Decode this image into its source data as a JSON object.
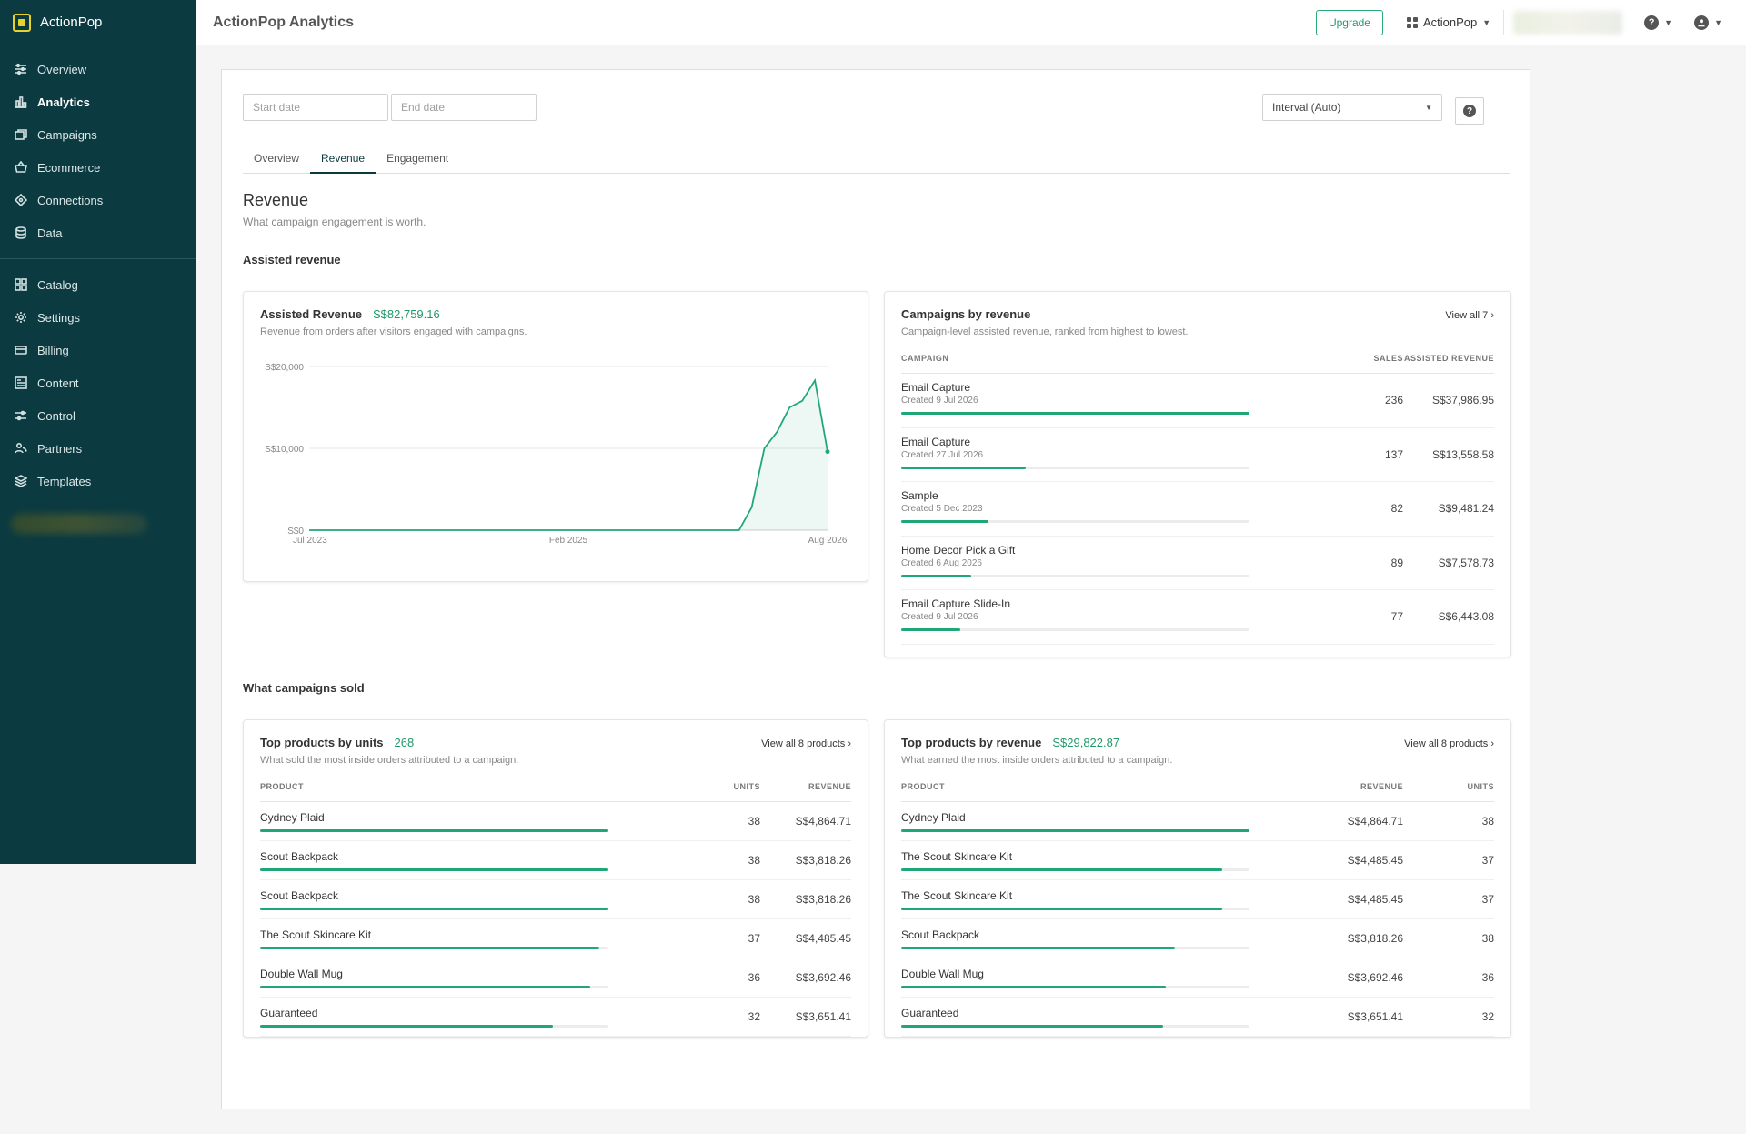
{
  "app": {
    "brand": "ActionPop",
    "title": "ActionPop Analytics"
  },
  "sidebar": {
    "items_top": [
      {
        "label": "Overview",
        "icon": "sliders-icon"
      },
      {
        "label": "Analytics",
        "icon": "bar-chart-icon",
        "active": true
      },
      {
        "label": "Campaigns",
        "icon": "campaigns-icon"
      },
      {
        "label": "Ecommerce",
        "icon": "basket-icon"
      },
      {
        "label": "Connections",
        "icon": "connections-icon"
      },
      {
        "label": "Data",
        "icon": "database-icon"
      }
    ],
    "items_bottom": [
      {
        "label": "Catalog",
        "icon": "grid-icon"
      },
      {
        "label": "Settings",
        "icon": "gear-icon"
      },
      {
        "label": "Billing",
        "icon": "card-icon"
      },
      {
        "label": "Content",
        "icon": "content-icon"
      },
      {
        "label": "Control",
        "icon": "control-icon"
      },
      {
        "label": "Partners",
        "icon": "partners-icon"
      },
      {
        "label": "Templates",
        "icon": "layers-icon"
      }
    ]
  },
  "topbar": {
    "upgrade_label": "Upgrade",
    "account_label": "ActionPop"
  },
  "filters": {
    "start_placeholder": "Start date",
    "end_placeholder": "End date",
    "interval_label": "Interval (Auto)"
  },
  "tabs": [
    "Overview",
    "Revenue",
    "Engagement"
  ],
  "active_tab": "Revenue",
  "page": {
    "title": "Revenue",
    "subtitle": "What campaign engagement is worth.",
    "section_assisted": "Assisted revenue",
    "section_sold": "What campaigns sold"
  },
  "assisted_card": {
    "title": "Assisted Revenue",
    "metric": "S$82,759.16",
    "subtitle": "Revenue from orders after visitors engaged with campaigns."
  },
  "chart_data": {
    "type": "area",
    "title": "",
    "xlabel": "",
    "ylabel": "",
    "ylim": [
      0,
      20000
    ],
    "y_ticks": [
      0,
      10000,
      20000
    ],
    "y_tick_labels": [
      "S$0",
      "S$10,000",
      "S$20,000"
    ],
    "x_tick_labels": [
      "Jul 2023",
      "Feb 2025",
      "Aug 2026"
    ],
    "grid": true,
    "color": "#1fa876",
    "series": [
      {
        "values": [
          0,
          0,
          0,
          0,
          0,
          0,
          0,
          0,
          0,
          0,
          0,
          0,
          0,
          0,
          0,
          0,
          0,
          0,
          0,
          0,
          0,
          0,
          0,
          0,
          0,
          0,
          0,
          0,
          0,
          0,
          0,
          0,
          0,
          0,
          0,
          2800,
          10000,
          12000,
          15000,
          15800,
          18300,
          9600
        ]
      }
    ]
  },
  "campaigns_card": {
    "title": "Campaigns by revenue",
    "link": "View all 7 ›",
    "subtitle": "Campaign-level assisted revenue, ranked from highest to lowest.",
    "columns": [
      "CAMPAIGN",
      "SALES",
      "ASSISTED REVENUE"
    ],
    "rows": [
      {
        "name": "Email Capture",
        "created": "Created 9 Jul 2026",
        "sales": "236",
        "revenue": "S$37,986.95",
        "fraction": 1.0
      },
      {
        "name": "Email Capture",
        "created": "Created 27 Jul 2026",
        "sales": "137",
        "revenue": "S$13,558.58",
        "fraction": 0.357
      },
      {
        "name": "Sample",
        "created": "Created 5 Dec 2023",
        "sales": "82",
        "revenue": "S$9,481.24",
        "fraction": 0.25
      },
      {
        "name": "Home Decor Pick a Gift",
        "created": "Created 6 Aug 2026",
        "sales": "89",
        "revenue": "S$7,578.73",
        "fraction": 0.2
      },
      {
        "name": "Email Capture Slide-In",
        "created": "Created 9 Jul 2026",
        "sales": "77",
        "revenue": "S$6,443.08",
        "fraction": 0.17
      }
    ]
  },
  "units_card": {
    "title": "Top products by units",
    "metric": "268",
    "link": "View all 8 products ›",
    "subtitle": "What sold the most inside orders attributed to a campaign.",
    "columns": [
      "PRODUCT",
      "UNITS",
      "REVENUE"
    ],
    "rows": [
      {
        "name": "Cydney Plaid",
        "units": "38",
        "revenue": "S$4,864.71",
        "fraction": 1.0
      },
      {
        "name": "Scout Backpack",
        "units": "38",
        "revenue": "S$3,818.26",
        "fraction": 1.0
      },
      {
        "name": "Scout Backpack",
        "units": "38",
        "revenue": "S$3,818.26",
        "fraction": 1.0
      },
      {
        "name": "The Scout Skincare Kit",
        "units": "37",
        "revenue": "S$4,485.45",
        "fraction": 0.974
      },
      {
        "name": "Double Wall Mug",
        "units": "36",
        "revenue": "S$3,692.46",
        "fraction": 0.947
      },
      {
        "name": "Guaranteed",
        "units": "32",
        "revenue": "S$3,651.41",
        "fraction": 0.842
      }
    ]
  },
  "revenue_card": {
    "title": "Top products by revenue",
    "metric": "S$29,822.87",
    "link": "View all 8 products ›",
    "subtitle": "What earned the most inside orders attributed to a campaign.",
    "columns": [
      "PRODUCT",
      "REVENUE",
      "UNITS"
    ],
    "rows": [
      {
        "name": "Cydney Plaid",
        "revenue": "S$4,864.71",
        "units": "38",
        "fraction": 1.0
      },
      {
        "name": "The Scout Skincare Kit",
        "revenue": "S$4,485.45",
        "units": "37",
        "fraction": 0.922
      },
      {
        "name": "The Scout Skincare Kit",
        "revenue": "S$4,485.45",
        "units": "37",
        "fraction": 0.922
      },
      {
        "name": "Scout Backpack",
        "revenue": "S$3,818.26",
        "units": "38",
        "fraction": 0.785
      },
      {
        "name": "Double Wall Mug",
        "revenue": "S$3,692.46",
        "units": "36",
        "fraction": 0.759
      },
      {
        "name": "Guaranteed",
        "revenue": "S$3,651.41",
        "units": "32",
        "fraction": 0.751
      }
    ]
  }
}
